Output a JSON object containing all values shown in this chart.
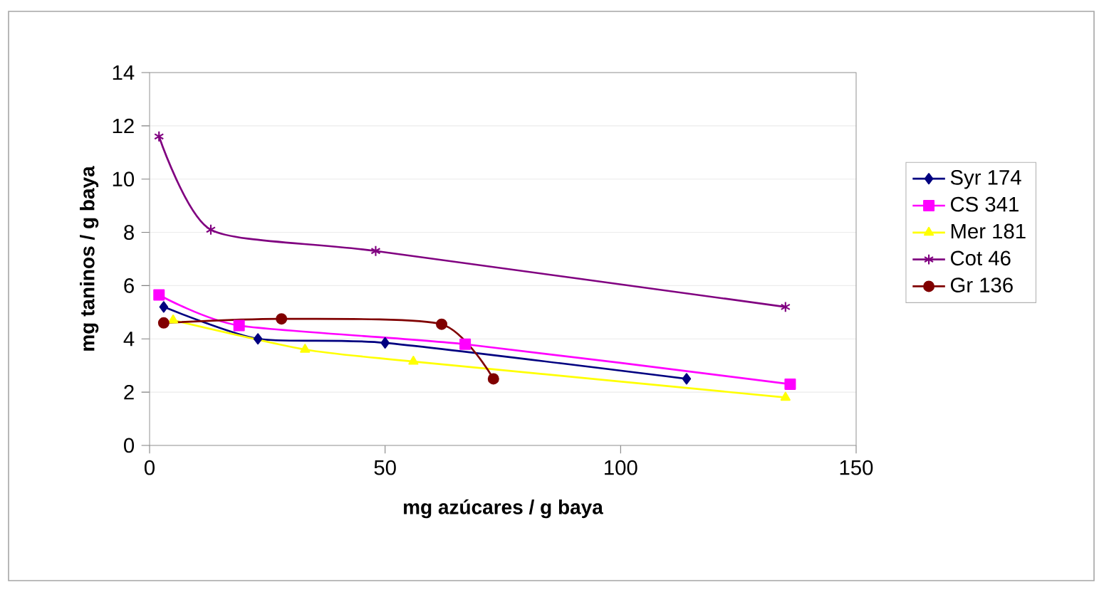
{
  "chart_data": {
    "type": "line",
    "xlabel": "mg azúcares / g baya",
    "ylabel": "mg taninos / g baya",
    "xlim": [
      0,
      150
    ],
    "ylim": [
      0,
      14
    ],
    "xticks": [
      0,
      50,
      100,
      150
    ],
    "yticks": [
      0,
      2,
      4,
      6,
      8,
      10,
      12,
      14
    ],
    "grid": "y",
    "legend": "right",
    "line_style": "solid",
    "series": [
      {
        "name": "Syr 174",
        "color": "#000080",
        "marker": "diamond",
        "x": [
          3,
          23,
          50,
          114
        ],
        "values": [
          5.2,
          4.0,
          3.85,
          2.5
        ]
      },
      {
        "name": "CS 341",
        "color": "#ff00ff",
        "marker": "square",
        "x": [
          2,
          19,
          67,
          136
        ],
        "values": [
          5.65,
          4.5,
          3.8,
          2.3
        ]
      },
      {
        "name": "Mer 181",
        "color": "#ffff00",
        "marker": "triangle",
        "x": [
          5,
          33,
          56,
          135
        ],
        "values": [
          4.7,
          3.6,
          3.15,
          1.8
        ]
      },
      {
        "name": "Cot 46",
        "color": "#800080",
        "marker": "cross",
        "x": [
          2,
          13,
          48,
          135
        ],
        "values": [
          11.6,
          8.1,
          7.3,
          5.2
        ]
      },
      {
        "name": "Gr 136",
        "color": "#800000",
        "marker": "circle",
        "x": [
          3,
          28,
          62,
          73
        ],
        "values": [
          4.6,
          4.75,
          4.55,
          2.5
        ]
      }
    ]
  }
}
